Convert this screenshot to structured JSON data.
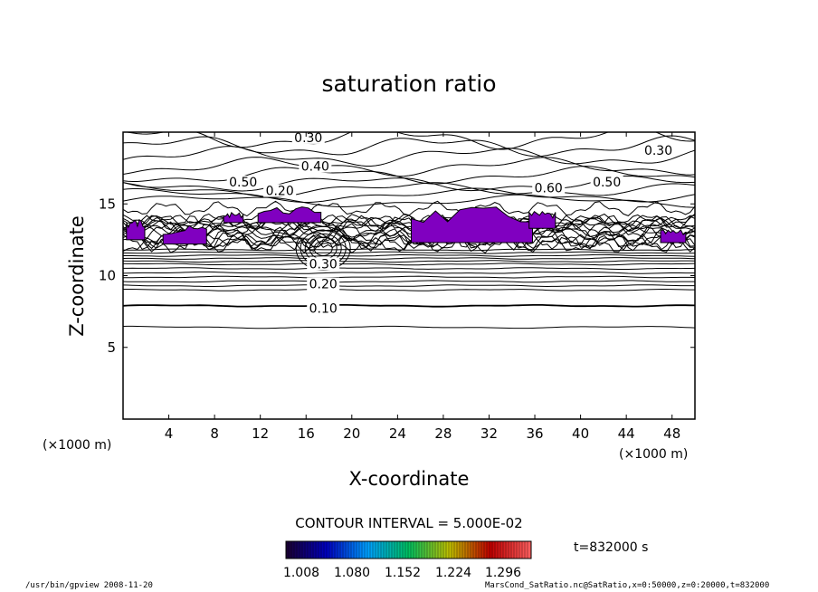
{
  "chart_data": {
    "type": "heatmap",
    "title": "saturation ratio",
    "xlabel": "X-coordinate",
    "ylabel": "Z-coordinate",
    "x_unit": "(×1000 m)",
    "y_unit": "(×1000 m)",
    "xlim": [
      0,
      50
    ],
    "ylim": [
      0,
      20
    ],
    "x_ticks": [
      4,
      8,
      12,
      16,
      20,
      24,
      28,
      32,
      36,
      40,
      44,
      48
    ],
    "y_ticks": [
      5,
      10,
      15
    ],
    "contour_interval_text": "CONTOUR INTERVAL = 5.000E-02",
    "time_text": "t=832000 s",
    "colorbar": {
      "tick_labels": [
        "1.008",
        "1.080",
        "1.152",
        "1.224",
        "1.296"
      ],
      "colors": [
        "#1a0030",
        "#0000c0",
        "#00a0ff",
        "#00c060",
        "#c0c000",
        "#c00000",
        "#ff6060"
      ]
    },
    "contour_labels": [
      {
        "text": "0.30",
        "x": 16.2,
        "y": 19.5
      },
      {
        "text": "0.40",
        "x": 16.8,
        "y": 17.5
      },
      {
        "text": "0.50",
        "x": 10.5,
        "y": 16.4
      },
      {
        "text": "0.20",
        "x": 13.7,
        "y": 15.8
      },
      {
        "text": "0.60",
        "x": 37.2,
        "y": 16.0
      },
      {
        "text": "0.50",
        "x": 42.3,
        "y": 16.4
      },
      {
        "text": "0.30",
        "x": 46.8,
        "y": 18.6
      },
      {
        "text": "0.30",
        "x": 17.5,
        "y": 10.7
      },
      {
        "text": "0.20",
        "x": 17.5,
        "y": 9.3
      },
      {
        "text": "0.10",
        "x": 17.5,
        "y": 7.6
      }
    ],
    "supersaturated_regions": [
      {
        "x": [
          0.3,
          1.9
        ],
        "z": [
          12.5,
          14.0
        ]
      },
      {
        "x": [
          3.5,
          7.3
        ],
        "z": [
          12.2,
          13.5
        ]
      },
      {
        "x": [
          8.8,
          10.5
        ],
        "z": [
          13.7,
          14.4
        ]
      },
      {
        "x": [
          11.8,
          17.3
        ],
        "z": [
          13.7,
          14.8
        ]
      },
      {
        "x": [
          25.2,
          35.8
        ],
        "z": [
          12.3,
          14.8
        ]
      },
      {
        "x": [
          35.5,
          37.8
        ],
        "z": [
          13.3,
          14.5
        ]
      },
      {
        "x": [
          47.0,
          49.2
        ],
        "z": [
          12.3,
          13.2
        ]
      }
    ],
    "supersaturated_color": "#8000c0"
  },
  "footer": {
    "left": "/usr/bin/gpview  2008-11-20",
    "right": "MarsCond_SatRatio.nc@SatRatio,x=0:50000,z=0:20000,t=832000"
  }
}
